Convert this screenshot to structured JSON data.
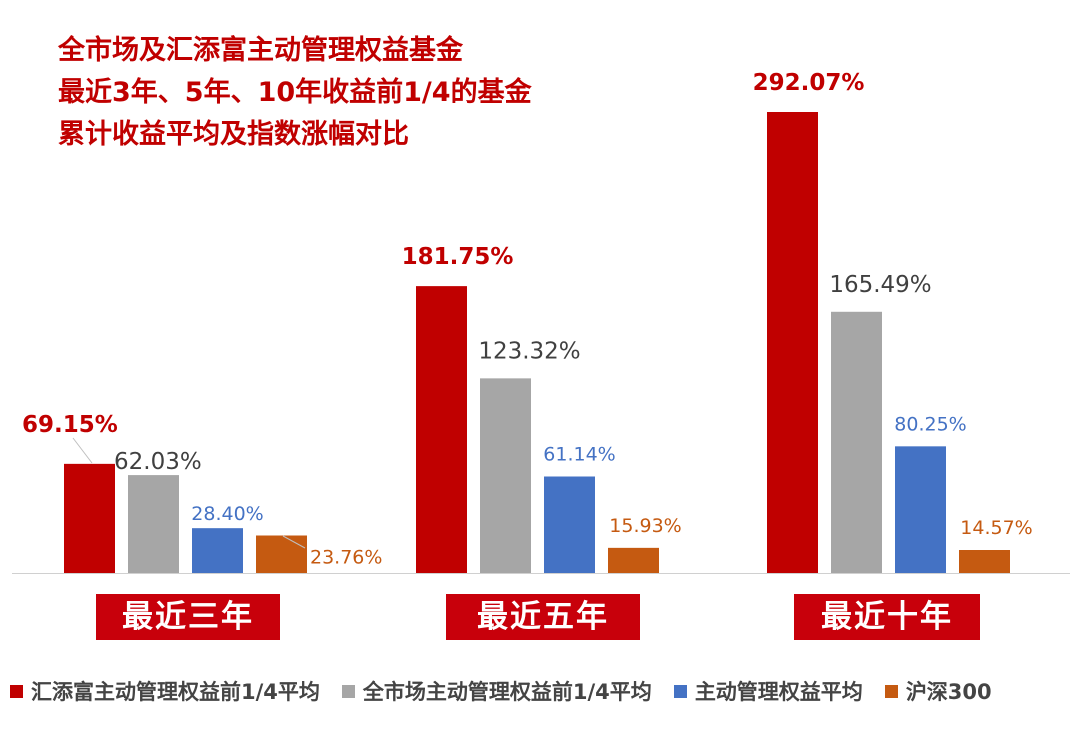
{
  "title_lines": [
    "全市场及汇添富主动管理权益基金",
    "最近3年、5年、10年收益前1/4的基金",
    "累计收益平均及指数涨幅对比"
  ],
  "chart_data": {
    "type": "bar",
    "categories": [
      "最近三年",
      "最近五年",
      "最近十年"
    ],
    "series": [
      {
        "name": "汇添富主动管理权益前1/4平均",
        "values": [
          69.15,
          181.75,
          292.07
        ],
        "labels": [
          "69.15%",
          "181.75%",
          "292.07%"
        ],
        "color": "#c00000"
      },
      {
        "name": "全市场主动管理权益前1/4平均",
        "values": [
          62.03,
          123.32,
          165.49
        ],
        "labels": [
          "62.03%",
          "123.32%",
          "165.49%"
        ],
        "color": "#a6a6a6"
      },
      {
        "name": "主动管理权益平均",
        "values": [
          28.4,
          61.14,
          80.25
        ],
        "labels": [
          "28.40%",
          "61.14%",
          "80.25%"
        ],
        "color": "#4472c4"
      },
      {
        "name": "沪深300",
        "values": [
          23.76,
          15.93,
          14.57
        ],
        "labels": [
          "23.76%",
          "15.93%",
          "14.57%"
        ],
        "color": "#c55a11"
      }
    ],
    "label_colors": [
      "#c00000",
      "#404040",
      "#4472c4",
      "#c55a11"
    ],
    "ylim": [
      0,
      292.07
    ],
    "grid": false,
    "legend_position": "bottom"
  }
}
